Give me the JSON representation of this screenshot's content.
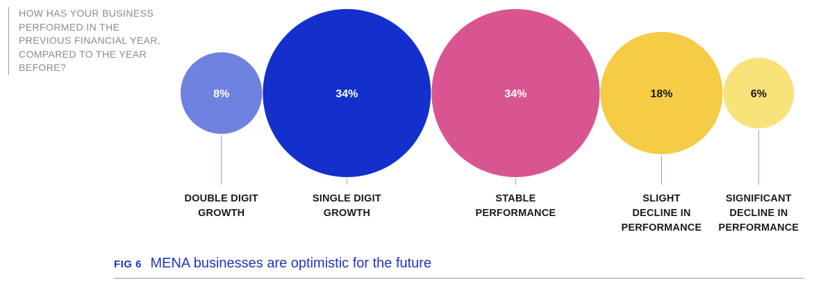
{
  "question": "HOW HAS YOUR BUSINESS PERFORMED IN THE PREVIOUS FINANCIAL YEAR, COMPARED TO THE YEAR BEFORE?",
  "figure": {
    "label": "FIG 6",
    "title": "MENA businesses are optimistic for the future"
  },
  "chart_data": {
    "type": "bubble",
    "unit": "%",
    "categories": [
      [
        "DOUBLE DIGIT",
        "GROWTH"
      ],
      [
        "SINGLE DIGIT",
        "GROWTH"
      ],
      [
        "STABLE",
        "PERFORMANCE"
      ],
      [
        "SLIGHT",
        "DECLINE IN",
        "PERFORMANCE"
      ],
      [
        "SIGNIFICANT",
        "DECLINE IN",
        "PERFORMANCE"
      ]
    ],
    "values": [
      8,
      34,
      34,
      18,
      6
    ],
    "labels": [
      "8%",
      "34%",
      "34%",
      "18%",
      "6%"
    ],
    "colors": [
      "#6f82e0",
      "#1330cc",
      "#d95591",
      "#f6cb45",
      "#f8e27a"
    ],
    "label_colors": [
      "#ffffff",
      "#ffffff",
      "#ffffff",
      "#1a1a1a",
      "#1a1a1a"
    ],
    "connector_color": "#8a9ad6"
  }
}
